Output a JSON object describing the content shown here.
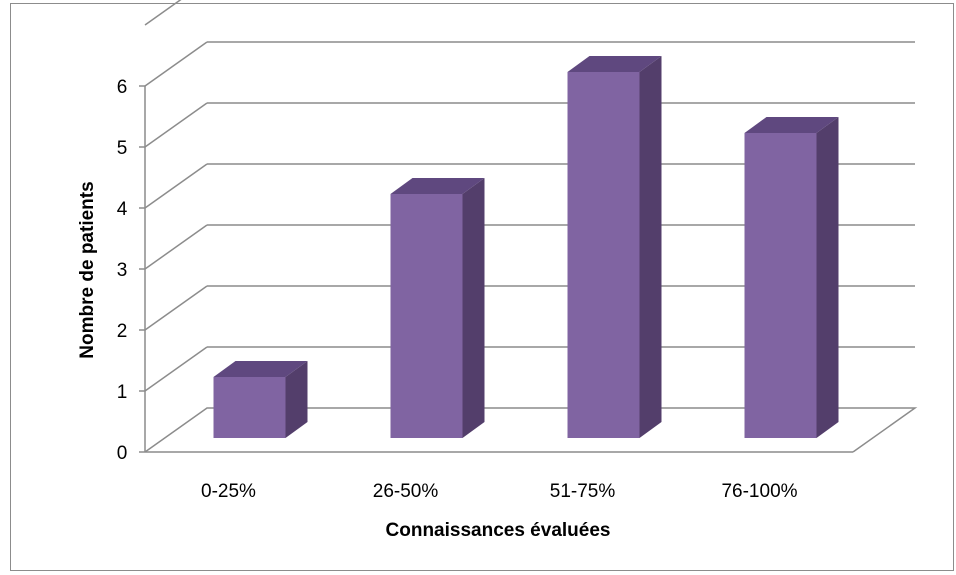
{
  "chart_data": {
    "type": "bar",
    "style": "3d-column",
    "categories": [
      "0-25%",
      "26-50%",
      "51-75%",
      "76-100%"
    ],
    "values": [
      1,
      4,
      6,
      5
    ],
    "xlabel": "Connaissances évaluées",
    "ylabel": "Nombre de patients",
    "ylim": [
      0,
      6
    ],
    "yticks": [
      "0",
      "1",
      "2",
      "3",
      "4",
      "5",
      "6"
    ],
    "grid": true,
    "legend": false,
    "colors": {
      "bar_front": "#8064a2",
      "bar_side": "#533e6b",
      "bar_top": "#5f487f",
      "grid": "#8c8c8c"
    }
  }
}
